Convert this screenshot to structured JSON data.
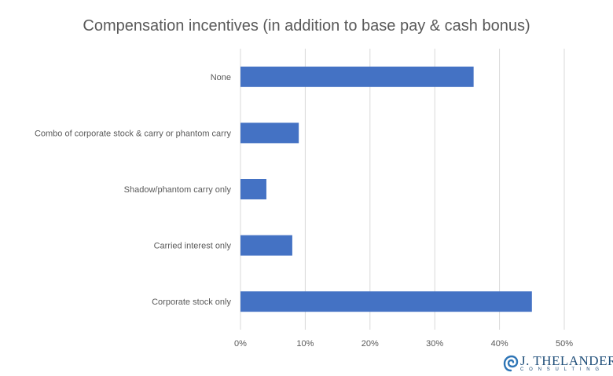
{
  "chart_data": {
    "type": "bar",
    "orientation": "horizontal",
    "title": "Compensation incentives (in addition to base pay & cash bonus)",
    "categories": [
      "None",
      "Combo of corporate stock & carry or phantom carry",
      "Shadow/phantom carry only",
      "Carried interest only",
      "Corporate stock only"
    ],
    "values": [
      36,
      9,
      4,
      8,
      45
    ],
    "value_unit": "%",
    "xlim": [
      0,
      50
    ],
    "xticks": [
      "0%",
      "10%",
      "20%",
      "30%",
      "40%",
      "50%"
    ],
    "grid": true,
    "legend": "none",
    "bar_color": "#4472c4"
  },
  "logo": {
    "name": "J. THELANDER",
    "sub": "CONSULTING"
  }
}
